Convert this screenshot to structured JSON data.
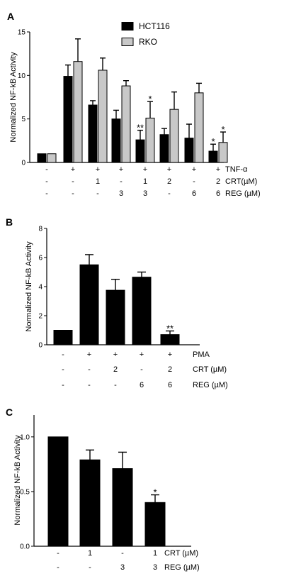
{
  "chart_data": [
    {
      "type": "bar",
      "panel": "A",
      "ylabel": "Normalized NF-kB Activity",
      "ylim": [
        0,
        15
      ],
      "yticks": [
        "0",
        "5",
        "10",
        "15"
      ],
      "grid": false,
      "legend": "top-center",
      "legend_entries": [
        "HCT116",
        "RKO"
      ],
      "colors": {
        "HCT116": "#000000",
        "RKO": "#c8c8c8"
      },
      "categories": [
        "1",
        "2",
        "3",
        "4",
        "5",
        "6",
        "7",
        "8"
      ],
      "series": [
        {
          "name": "HCT116",
          "values": [
            1.0,
            9.9,
            6.6,
            5.0,
            2.6,
            3.2,
            2.8,
            1.3
          ],
          "errors": [
            0.0,
            1.3,
            0.5,
            1.0,
            1.1,
            0.7,
            1.6,
            0.8
          ]
        },
        {
          "name": "RKO",
          "values": [
            1.0,
            11.6,
            10.6,
            8.8,
            5.1,
            6.1,
            8.0,
            2.3
          ],
          "errors": [
            0.0,
            2.6,
            1.4,
            0.6,
            1.9,
            2.0,
            1.1,
            1.2
          ]
        }
      ],
      "stars": [
        {
          "category": 4,
          "series": "HCT116",
          "text": "**"
        },
        {
          "category": 4,
          "series": "RKO",
          "text": "*"
        },
        {
          "category": 7,
          "series": "HCT116",
          "text": "*"
        },
        {
          "category": 7,
          "series": "RKO",
          "text": "*"
        }
      ],
      "conditions": [
        {
          "label": "TNF-α",
          "values": [
            "-",
            "+",
            "+",
            "+",
            "+",
            "+",
            "+",
            "+"
          ]
        },
        {
          "label": "CRT(µM)",
          "values": [
            "-",
            "-",
            "1",
            "-",
            "1",
            "2",
            "-",
            "2"
          ]
        },
        {
          "label": "REG (µM)",
          "values": [
            "-",
            "-",
            "-",
            "3",
            "3",
            "-",
            "6",
            "6"
          ]
        }
      ]
    },
    {
      "type": "bar",
      "panel": "B",
      "ylabel": "Normalized NF-kB Activity",
      "ylim": [
        0,
        8
      ],
      "yticks": [
        "0",
        "2",
        "4",
        "6",
        "8"
      ],
      "grid": false,
      "categories": [
        "1",
        "2",
        "3",
        "4",
        "5"
      ],
      "series": [
        {
          "values": [
            1.0,
            5.5,
            3.75,
            4.65,
            0.7
          ],
          "errors": [
            0.0,
            0.7,
            0.75,
            0.35,
            0.25
          ]
        }
      ],
      "stars": [
        {
          "category": 4,
          "text": "**"
        }
      ],
      "conditions": [
        {
          "label": "PMA",
          "values": [
            "-",
            "+",
            "+",
            "+",
            "+"
          ]
        },
        {
          "label": "CRT (µM)",
          "values": [
            "-",
            "-",
            "2",
            "-",
            "2"
          ]
        },
        {
          "label": "REG (µM)",
          "values": [
            "-",
            "-",
            "-",
            "6",
            "6"
          ]
        }
      ]
    },
    {
      "type": "bar",
      "panel": "C",
      "ylabel": "Normalized NF-kB Activity",
      "ylim": [
        0,
        1.2
      ],
      "yticks": [
        "0.0",
        "0.5",
        "1.0"
      ],
      "grid": false,
      "categories": [
        "1",
        "2",
        "3",
        "4"
      ],
      "series": [
        {
          "values": [
            1.0,
            0.79,
            0.71,
            0.4
          ],
          "errors": [
            0.0,
            0.09,
            0.15,
            0.07
          ]
        }
      ],
      "stars": [
        {
          "category": 3,
          "text": "*"
        }
      ],
      "conditions": [
        {
          "label": "CRT (µM)",
          "values": [
            "-",
            "1",
            "-",
            "1"
          ]
        },
        {
          "label": "REG (µM)",
          "values": [
            "-",
            "-",
            "3",
            "3"
          ]
        }
      ]
    }
  ]
}
